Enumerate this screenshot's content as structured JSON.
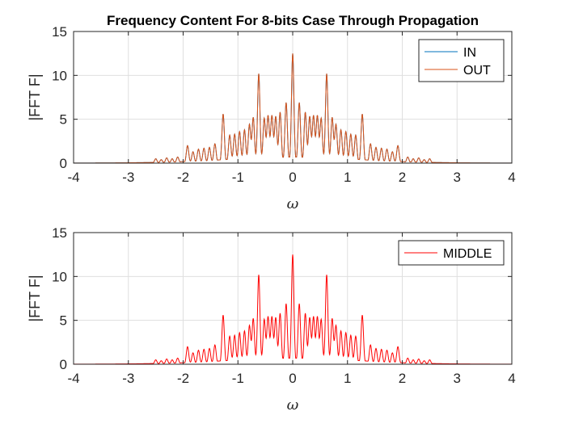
{
  "chart_data": [
    {
      "type": "line",
      "title": "Frequency Content For 8-bits Case Through Propagation",
      "xlabel": "ω",
      "ylabel": "|FFT F|",
      "xlim": [
        -4,
        4
      ],
      "ylim": [
        0,
        15
      ],
      "xticks": [
        "-4",
        "-3",
        "-2",
        "-1",
        "0",
        "1",
        "2",
        "3",
        "4"
      ],
      "yticks": [
        "0",
        "5",
        "10",
        "15"
      ],
      "grid": true,
      "legend_position": "top-right",
      "series": [
        {
          "name": "IN",
          "color": "#0072BD"
        },
        {
          "name": "OUT",
          "color": "#D95319"
        }
      ],
      "peaks": [
        [
          -2.5,
          0.5
        ],
        [
          -2.4,
          0.4
        ],
        [
          -2.3,
          0.6
        ],
        [
          -2.2,
          0.5
        ],
        [
          -2.1,
          0.7
        ],
        [
          -1.92,
          2.0
        ],
        [
          -1.82,
          1.3
        ],
        [
          -1.72,
          1.6
        ],
        [
          -1.62,
          1.7
        ],
        [
          -1.52,
          1.8
        ],
        [
          -1.42,
          2.2
        ],
        [
          -1.27,
          5.6
        ],
        [
          -1.15,
          3.2
        ],
        [
          -1.06,
          3.3
        ],
        [
          -0.97,
          3.6
        ],
        [
          -0.88,
          3.8
        ],
        [
          -0.79,
          4.4
        ],
        [
          -0.72,
          5.2
        ],
        [
          -0.62,
          10.2
        ],
        [
          -0.52,
          5.1
        ],
        [
          -0.45,
          5.4
        ],
        [
          -0.38,
          5.4
        ],
        [
          -0.31,
          5.3
        ],
        [
          -0.23,
          5.8
        ],
        [
          -0.12,
          6.9
        ],
        [
          0,
          12.5
        ],
        [
          0.12,
          6.9
        ],
        [
          0.23,
          5.8
        ],
        [
          0.31,
          5.3
        ],
        [
          0.38,
          5.4
        ],
        [
          0.45,
          5.4
        ],
        [
          0.52,
          5.1
        ],
        [
          0.62,
          10.2
        ],
        [
          0.72,
          5.2
        ],
        [
          0.79,
          4.4
        ],
        [
          0.88,
          3.8
        ],
        [
          0.97,
          3.6
        ],
        [
          1.06,
          3.3
        ],
        [
          1.15,
          3.2
        ],
        [
          1.27,
          5.6
        ],
        [
          1.42,
          2.2
        ],
        [
          1.52,
          1.8
        ],
        [
          1.62,
          1.7
        ],
        [
          1.72,
          1.6
        ],
        [
          1.82,
          1.3
        ],
        [
          1.92,
          2.0
        ],
        [
          2.1,
          0.7
        ],
        [
          2.2,
          0.5
        ],
        [
          2.3,
          0.6
        ],
        [
          2.4,
          0.4
        ],
        [
          2.5,
          0.5
        ]
      ]
    },
    {
      "type": "line",
      "title": "",
      "xlabel": "ω",
      "ylabel": "|FFT F|",
      "xlim": [
        -4,
        4
      ],
      "ylim": [
        0,
        15
      ],
      "xticks": [
        "-4",
        "-3",
        "-2",
        "-1",
        "0",
        "1",
        "2",
        "3",
        "4"
      ],
      "yticks": [
        "0",
        "5",
        "10",
        "15"
      ],
      "grid": true,
      "legend_position": "top-right",
      "series": [
        {
          "name": "MIDDLE",
          "color": "#FF0000"
        }
      ],
      "peaks": [
        [
          -2.5,
          0.5
        ],
        [
          -2.4,
          0.4
        ],
        [
          -2.3,
          0.6
        ],
        [
          -2.2,
          0.5
        ],
        [
          -2.1,
          0.7
        ],
        [
          -1.92,
          2.0
        ],
        [
          -1.82,
          1.3
        ],
        [
          -1.72,
          1.6
        ],
        [
          -1.62,
          1.7
        ],
        [
          -1.52,
          1.8
        ],
        [
          -1.42,
          2.2
        ],
        [
          -1.27,
          5.6
        ],
        [
          -1.15,
          3.2
        ],
        [
          -1.06,
          3.3
        ],
        [
          -0.97,
          3.6
        ],
        [
          -0.88,
          3.8
        ],
        [
          -0.79,
          4.4
        ],
        [
          -0.72,
          5.2
        ],
        [
          -0.62,
          10.2
        ],
        [
          -0.52,
          5.1
        ],
        [
          -0.45,
          5.4
        ],
        [
          -0.38,
          5.4
        ],
        [
          -0.31,
          5.3
        ],
        [
          -0.23,
          5.8
        ],
        [
          -0.12,
          6.9
        ],
        [
          0,
          12.5
        ],
        [
          0.12,
          6.9
        ],
        [
          0.23,
          5.8
        ],
        [
          0.31,
          5.3
        ],
        [
          0.38,
          5.4
        ],
        [
          0.45,
          5.4
        ],
        [
          0.52,
          5.1
        ],
        [
          0.62,
          10.2
        ],
        [
          0.72,
          5.2
        ],
        [
          0.79,
          4.4
        ],
        [
          0.88,
          3.8
        ],
        [
          0.97,
          3.6
        ],
        [
          1.06,
          3.3
        ],
        [
          1.15,
          3.2
        ],
        [
          1.27,
          5.6
        ],
        [
          1.42,
          2.2
        ],
        [
          1.52,
          1.8
        ],
        [
          1.62,
          1.7
        ],
        [
          1.72,
          1.6
        ],
        [
          1.82,
          1.3
        ],
        [
          1.92,
          2.0
        ],
        [
          2.1,
          0.7
        ],
        [
          2.2,
          0.5
        ],
        [
          2.3,
          0.6
        ],
        [
          2.4,
          0.4
        ],
        [
          2.5,
          0.5
        ]
      ]
    }
  ]
}
